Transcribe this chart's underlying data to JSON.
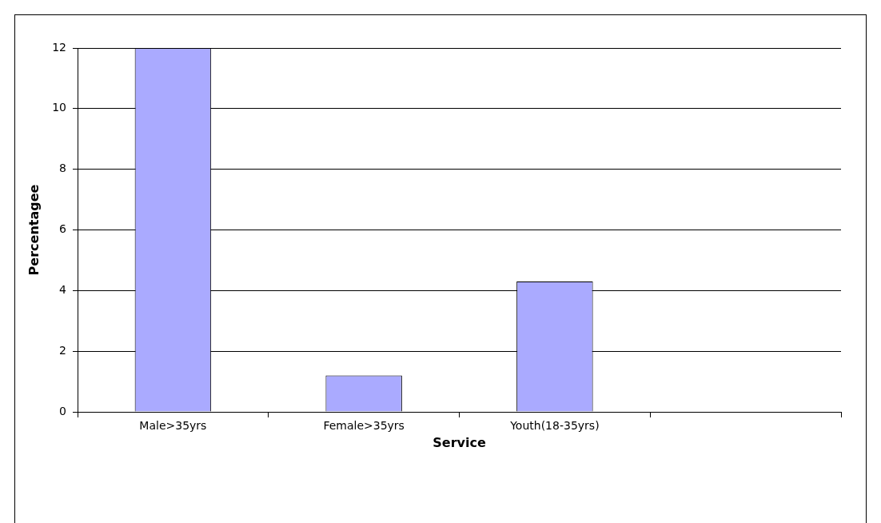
{
  "chart_data": {
    "type": "bar",
    "xlabel": "Service",
    "ylabel": "Percentagee",
    "categories": [
      "Male>35yrs",
      "Female>35yrs",
      "Youth(18-35yrs)",
      null
    ],
    "values": [
      12,
      1.2,
      4.3,
      null
    ],
    "color": "#aaaaff",
    "ylim": [
      0,
      12
    ],
    "yticks": [
      0,
      2,
      4,
      6,
      8,
      10,
      12
    ],
    "grid": "y",
    "legend": false
  }
}
